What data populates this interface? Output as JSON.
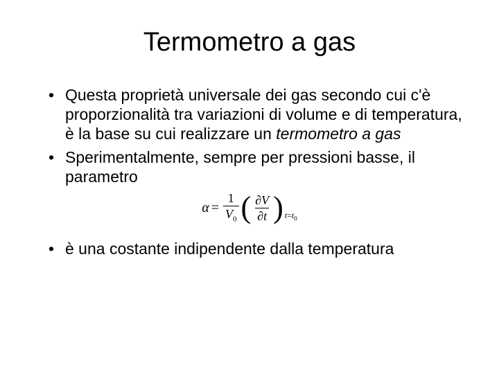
{
  "slide": {
    "title": "Termometro a gas",
    "title_fontsize": 38,
    "title_align": "center",
    "body_fontsize": 23,
    "text_color": "#000000",
    "background_color": "#ffffff",
    "font_family": "Arial, Helvetica, sans-serif",
    "bullets": [
      {
        "prefix": "Questa proprietà universale dei gas secondo cui c'è proporzionalità tra variazioni di volume e di temperatura, è la base su cui realizzare un ",
        "italic": "termometro a gas",
        "suffix": ""
      },
      {
        "prefix": "Sperimentalmente, sempre per pressioni basse, il parametro",
        "italic": "",
        "suffix": ""
      },
      {
        "prefix": "è una costante indipendente dalla temperatura",
        "italic": "",
        "suffix": ""
      }
    ],
    "formula": {
      "type": "equation",
      "lhs": "α",
      "equals": "=",
      "rhs_frac1_num": "1",
      "rhs_frac1_den_var": "V",
      "rhs_frac1_den_sub": "0",
      "rhs_frac2_num_op": "∂",
      "rhs_frac2_num_var": "V",
      "rhs_frac2_den_op": "∂",
      "rhs_frac2_den_var": "t",
      "outer_sub_var": "t",
      "outer_sub_eq": "=",
      "outer_sub_val_var": "t",
      "outer_sub_val_sub": "0",
      "fontsize": 20,
      "font_family": "Times New Roman, Times, serif",
      "color": "#000000"
    }
  }
}
